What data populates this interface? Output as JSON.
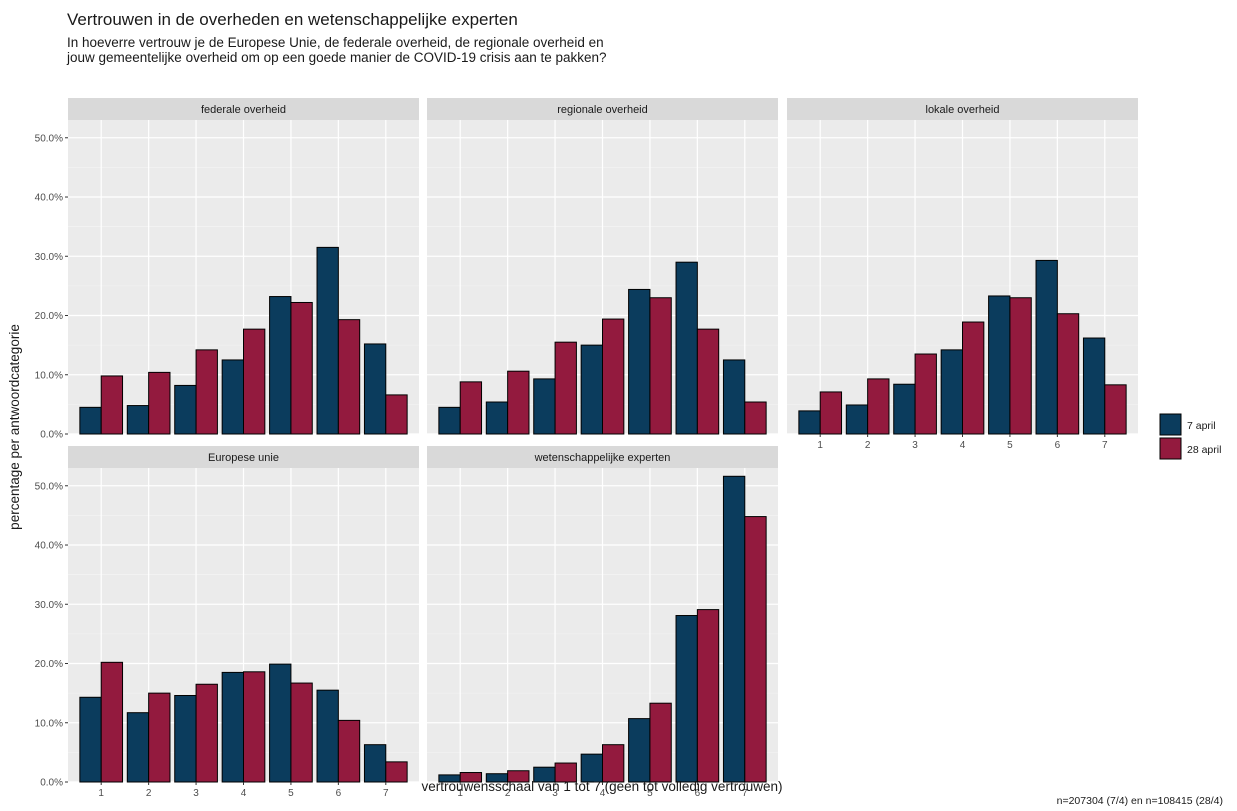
{
  "chart_data": {
    "type": "bar",
    "title": "Vertrouwen in de overheden en wetenschappelijke experten",
    "subtitle_lines": [
      "In hoeverre vertrouw je de Europese Unie, de federale overheid, de regionale overheid en",
      "jouw gemeentelijke overheid om op een goede manier de COVID-19 crisis aan te pakken?"
    ],
    "xlabel": "vertrouwensschaal van 1 tot 7 (geen tot volledig vertrouwen)",
    "ylabel": "percentage per antwoordcategorie",
    "categories": [
      "1",
      "2",
      "3",
      "4",
      "5",
      "6",
      "7"
    ],
    "yticks": [
      "0.0%",
      "10.0%",
      "20.0%",
      "30.0%",
      "40.0%",
      "50.0%"
    ],
    "ylim": [
      0,
      53
    ],
    "caption": "n=207304 (7/4) en n=108415 (28/4)",
    "legend": [
      {
        "name": "7 april",
        "color": "#0b3c5d"
      },
      {
        "name": "28 april",
        "color": "#931a3e"
      }
    ],
    "legend_position": "right",
    "grid": true,
    "panels": [
      {
        "title": "federale overheid",
        "series": [
          {
            "name": "7 april",
            "values": [
              4.5,
              4.8,
              8.2,
              12.5,
              23.2,
              31.5,
              15.2
            ]
          },
          {
            "name": "28 april",
            "values": [
              9.8,
              10.4,
              14.2,
              17.7,
              22.2,
              19.3,
              6.6
            ]
          }
        ]
      },
      {
        "title": "regionale overheid",
        "series": [
          {
            "name": "7 april",
            "values": [
              4.5,
              5.4,
              9.3,
              15.0,
              24.4,
              29.0,
              12.5
            ]
          },
          {
            "name": "28 april",
            "values": [
              8.8,
              10.6,
              15.5,
              19.4,
              23.0,
              17.7,
              5.4
            ]
          }
        ]
      },
      {
        "title": "lokale overheid",
        "series": [
          {
            "name": "7 april",
            "values": [
              3.9,
              4.9,
              8.4,
              14.2,
              23.3,
              29.3,
              16.2
            ]
          },
          {
            "name": "28 april",
            "values": [
              7.1,
              9.3,
              13.5,
              18.9,
              23.0,
              20.3,
              8.3
            ]
          }
        ]
      },
      {
        "title": "Europese unie",
        "series": [
          {
            "name": "7 april",
            "values": [
              14.3,
              11.7,
              14.6,
              18.5,
              19.9,
              15.5,
              6.3
            ]
          },
          {
            "name": "28 april",
            "values": [
              20.2,
              15.0,
              16.5,
              18.6,
              16.7,
              10.4,
              3.4
            ]
          }
        ]
      },
      {
        "title": "wetenschappelijke experten",
        "series": [
          {
            "name": "7 april",
            "values": [
              1.2,
              1.4,
              2.5,
              4.7,
              10.7,
              28.1,
              51.6
            ]
          },
          {
            "name": "28 april",
            "values": [
              1.6,
              1.9,
              3.2,
              6.3,
              13.3,
              29.1,
              44.8
            ]
          }
        ]
      }
    ]
  }
}
